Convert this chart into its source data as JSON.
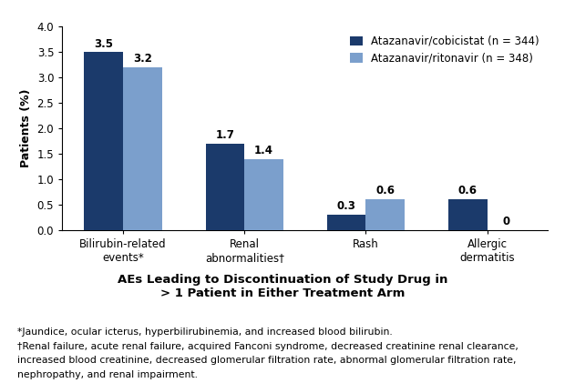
{
  "categories": [
    "Bilirubin-related\nevents*",
    "Renal\nabnormalities†",
    "Rash",
    "Allergic\ndermatitis"
  ],
  "series1_label": "Atazanavir/cobicistat (n = 344)",
  "series2_label": "Atazanavir/ritonavir (n = 348)",
  "series1_values": [
    3.5,
    1.7,
    0.3,
    0.6
  ],
  "series2_values": [
    3.2,
    1.4,
    0.6,
    0.0
  ],
  "series1_color": "#1B3A6B",
  "series2_color": "#7B9FCC",
  "ylabel": "Patients (%)",
  "ylim": [
    0,
    4.0
  ],
  "yticks": [
    0.0,
    0.5,
    1.0,
    1.5,
    2.0,
    2.5,
    3.0,
    3.5,
    4.0
  ],
  "title_line1": "AEs Leading to Discontinuation of Study Drug in",
  "title_line2": "> 1 Patient in Either Treatment Arm",
  "footnote1": "*Jaundice, ocular icterus, hyperbilirubinemia, and increased blood bilirubin.",
  "footnote2": "†Renal failure, acute renal failure, acquired Fanconi syndrome, decreased creatinine renal clearance,",
  "footnote3": "increased blood creatinine, decreased glomerular filtration rate, abnormal glomerular filtration rate,",
  "footnote4": "nephropathy, and renal impairment.",
  "bar_width": 0.32,
  "label_fontsize": 9,
  "tick_fontsize": 8.5,
  "legend_fontsize": 8.5,
  "value_fontsize": 8.5,
  "title_fontsize": 9.5,
  "footnote_fontsize": 7.8
}
